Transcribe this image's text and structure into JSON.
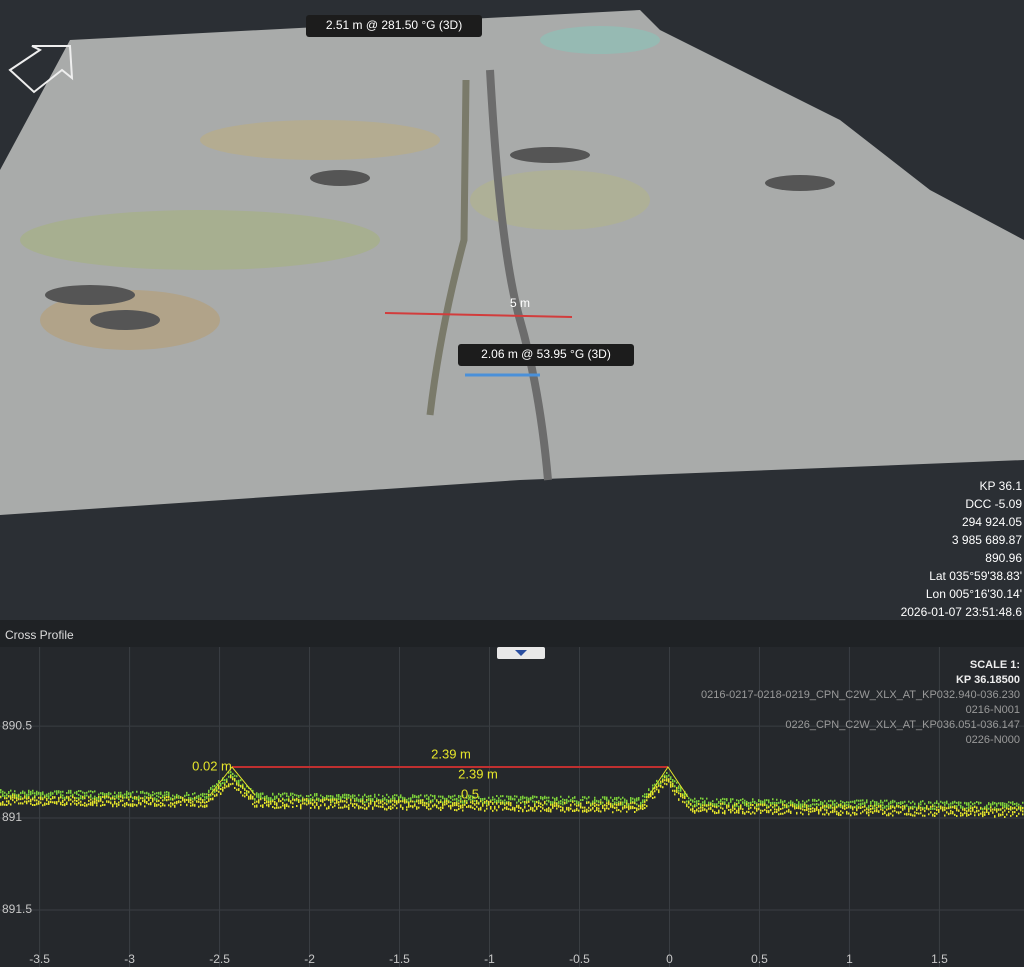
{
  "view3d": {
    "measure_top": "2.51 m @ 281.50 °G (3D)",
    "scale_label": "5 m",
    "measure_mid": "2.06 m @ 53.95 °G (3D)",
    "info": [
      "KP 36.1",
      "DCC -5.09",
      "294 924.05",
      "3 985 689.87",
      "890.96",
      "Lat 035°59'38.83'",
      "Lon 005°16'30.14'",
      "2026-01-07 23:51:48.6"
    ]
  },
  "cross_profile": {
    "title": "Cross Profile",
    "scale": "SCALE 1:",
    "kp": "KP 36.18500",
    "layers": [
      "0216-0217-0218-0219_CPN_C2W_XLX_AT_KP032.940-036.230",
      "0216-N001",
      "0226_CPN_C2W_XLX_AT_KP036.051-036.147",
      "0226-N000"
    ],
    "xlim": [
      -3.72,
      1.97
    ],
    "ylim": [
      890.07,
      891.81
    ],
    "xticks": [
      -3.5,
      -3,
      -2.5,
      -2,
      -1.5,
      -1,
      -0.5,
      0,
      0.5,
      1,
      1.5
    ],
    "yticks": [
      890.5,
      891,
      891.5
    ],
    "annotations": [
      "0.02 m",
      "2.39 m",
      "2.39 m",
      "0.5"
    ]
  }
}
